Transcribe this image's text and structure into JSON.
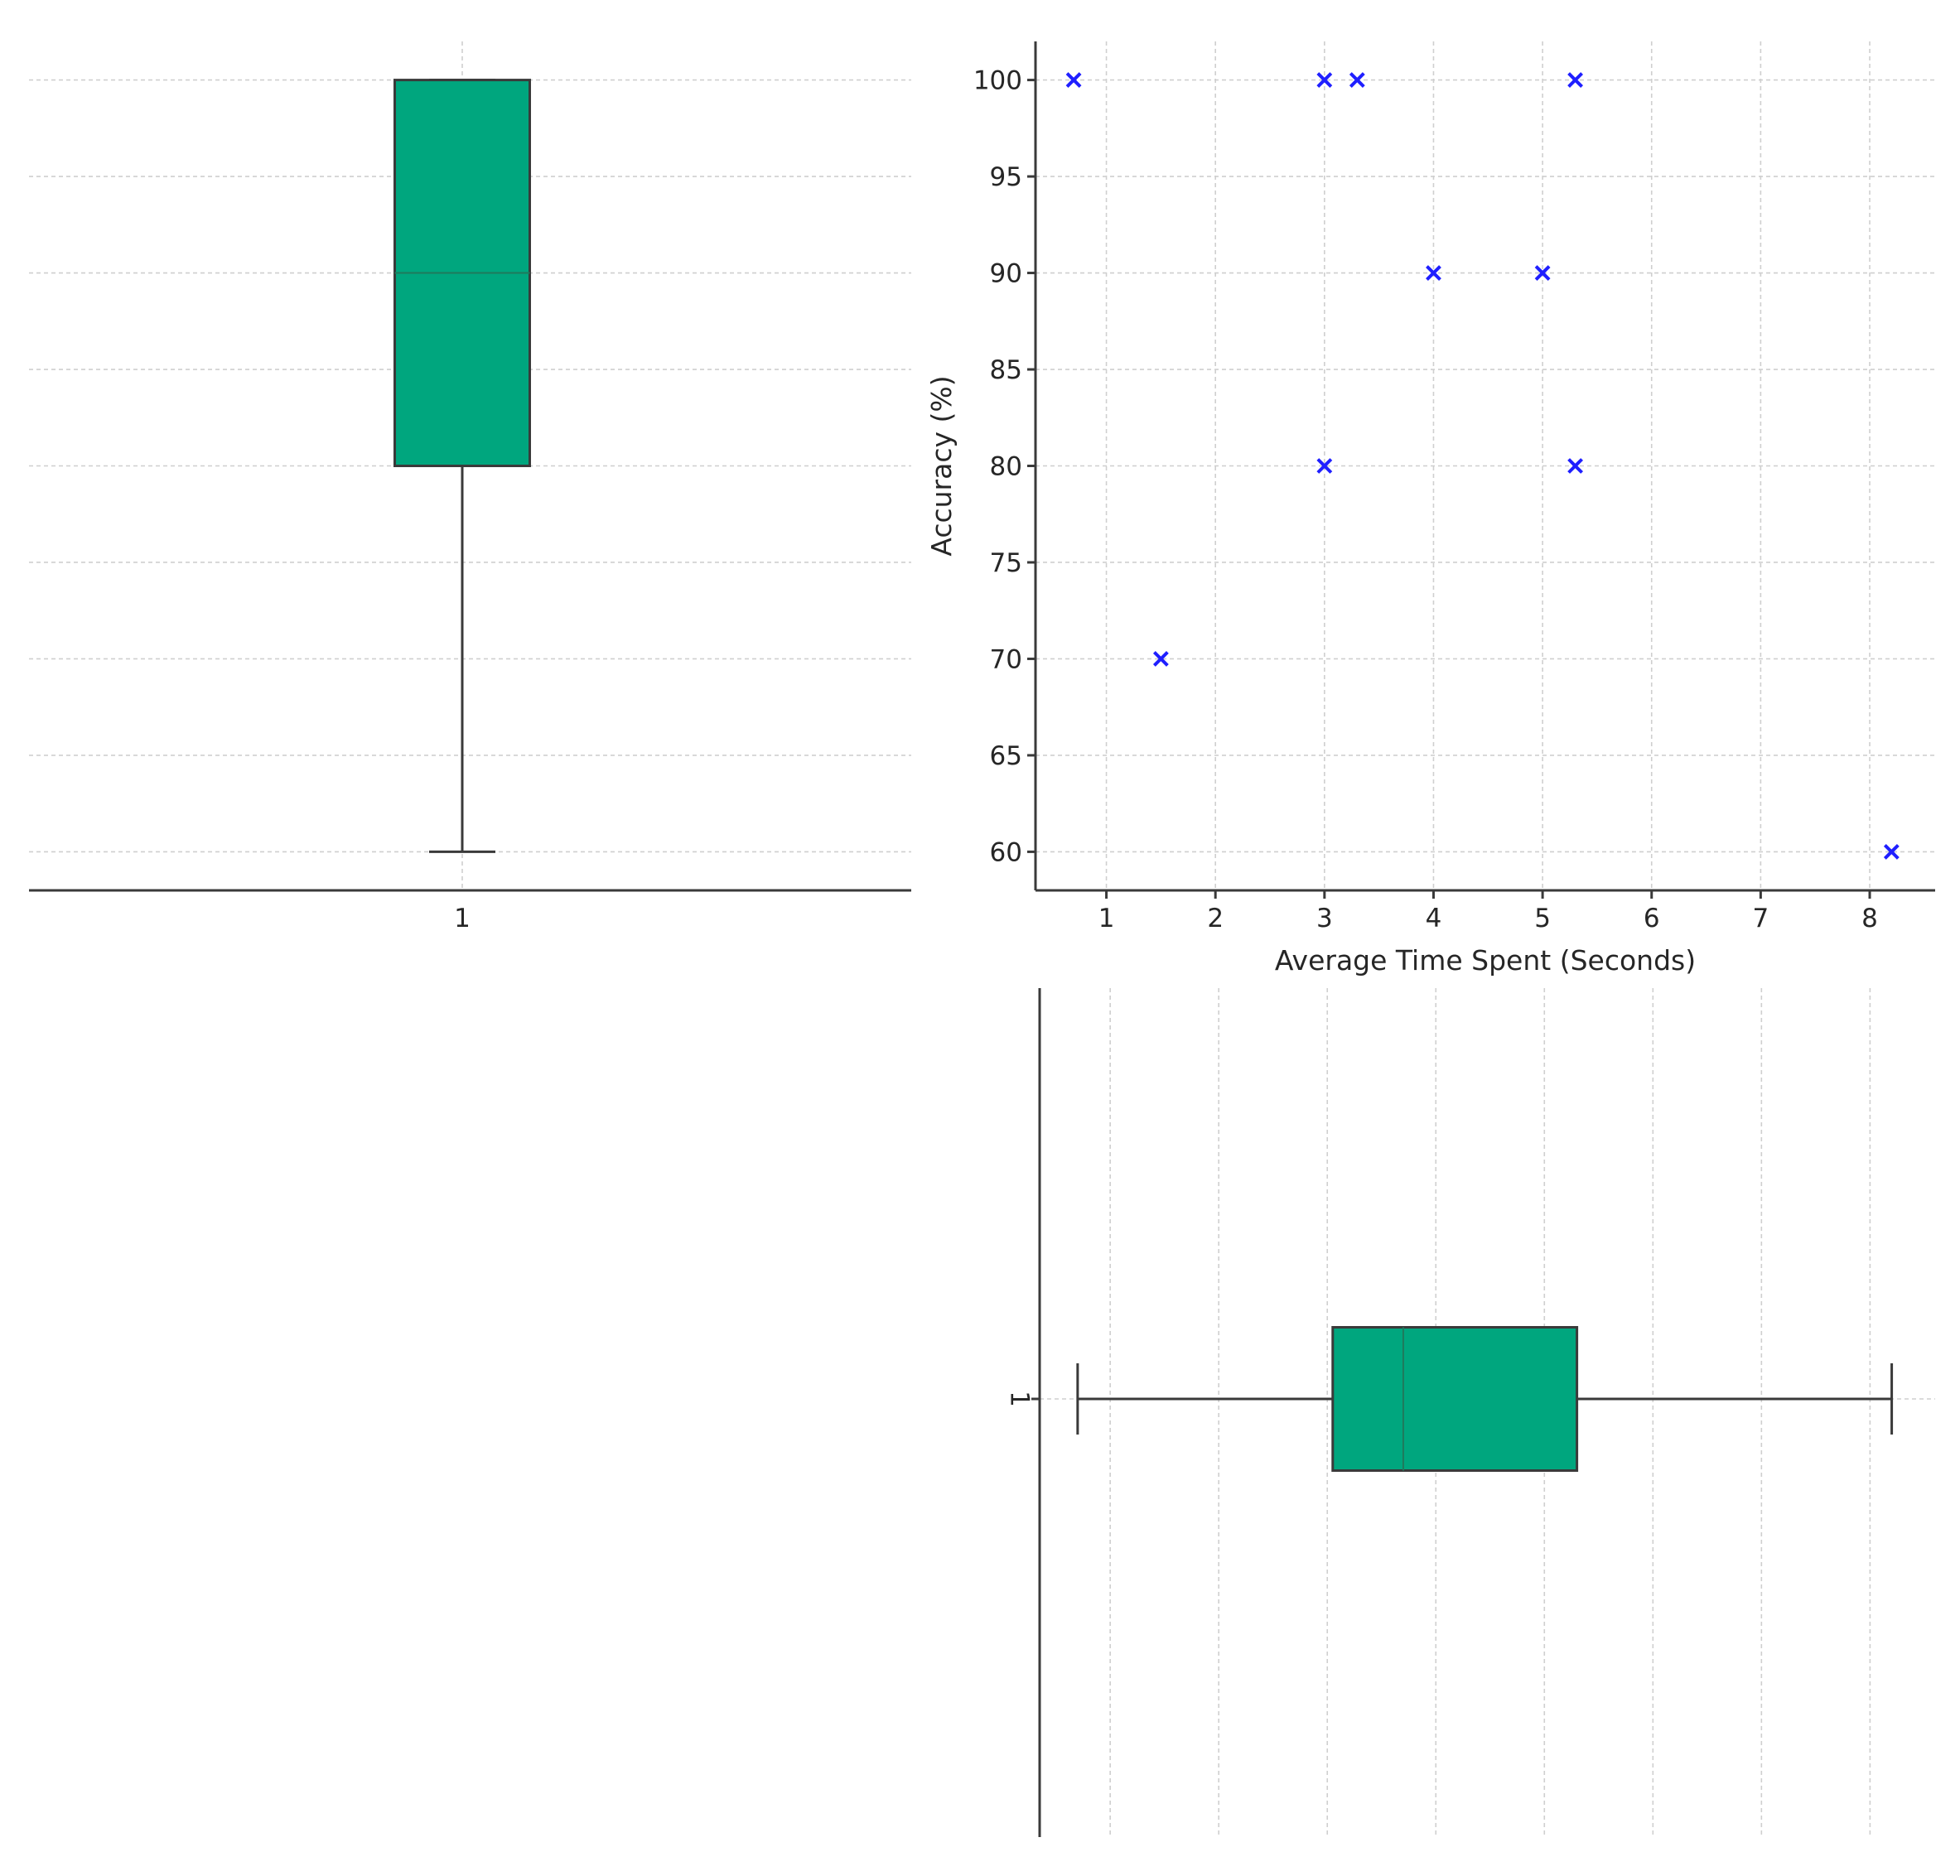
{
  "colors": {
    "box_fill": "#00a67e",
    "marker": "#1f1fff",
    "axis": "#3a3a3a",
    "grid": "#cfcfcf",
    "text": "#262626"
  },
  "chart_data": [
    {
      "id": "accuracy-box",
      "type": "box",
      "orientation": "vertical",
      "categories": [
        "1"
      ],
      "stats": {
        "min": 60,
        "q1": 80,
        "median": 90,
        "q3": 100,
        "max": 100
      },
      "ylim": [
        58,
        102
      ],
      "yticks": [
        60,
        65,
        70,
        75,
        80,
        85,
        90,
        95,
        100
      ],
      "show_y_tick_labels": false,
      "grid": true,
      "title": "",
      "xlabel": "",
      "ylabel": ""
    },
    {
      "id": "time-vs-accuracy-scatter",
      "type": "scatter",
      "marker": "x",
      "x": [
        0.7,
        3.0,
        3.3,
        5.3,
        4.0,
        5.0,
        3.0,
        5.3,
        1.5,
        8.2
      ],
      "y": [
        100,
        100,
        100,
        100,
        90,
        90,
        80,
        80,
        70,
        60
      ],
      "xlim": [
        0.35,
        8.6
      ],
      "ylim": [
        58,
        102
      ],
      "xticks": [
        "1",
        "2",
        "3",
        "4",
        "5",
        "6",
        "7",
        "8"
      ],
      "yticks": [
        "60",
        "65",
        "70",
        "75",
        "80",
        "85",
        "90",
        "95",
        "100"
      ],
      "xlabel": "Average Time Spent (Seconds)",
      "ylabel": "Accuracy (%)",
      "grid": true,
      "title": ""
    },
    {
      "id": "time-box",
      "type": "box",
      "orientation": "horizontal",
      "categories": [
        "1"
      ],
      "stats": {
        "min": 0.7,
        "q1": 3.05,
        "median": 3.7,
        "q3": 5.3,
        "max": 8.2
      },
      "xlim": [
        0.35,
        8.6
      ],
      "xticks": [
        1,
        2,
        3,
        4,
        5,
        6,
        7,
        8
      ],
      "show_x_tick_labels": false,
      "grid": true,
      "title": "",
      "xlabel": "",
      "ylabel": ""
    }
  ]
}
